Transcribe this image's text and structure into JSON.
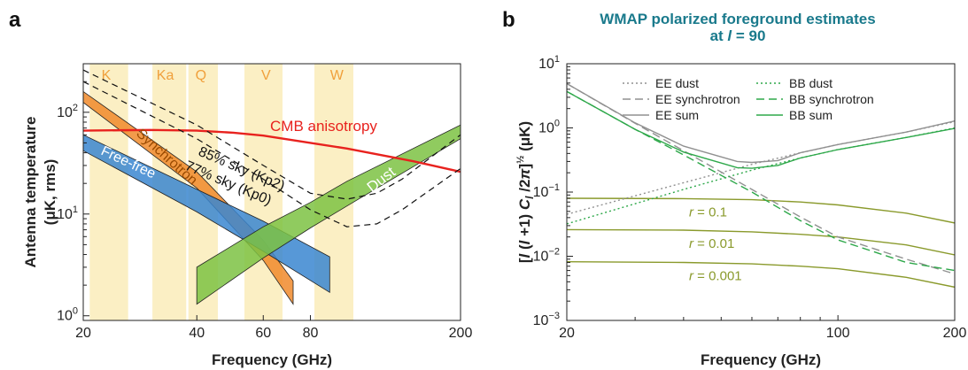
{
  "figure_title": "WMAP polarized foreground estimates",
  "chart_data": [
    {
      "panel_label": "a",
      "type": "line",
      "xlabel": "Frequency (GHz)",
      "ylabel": "Antenna temperature (μK, rms)",
      "xscale": "log",
      "yscale": "log",
      "xlim": [
        20,
        200
      ],
      "ylim": [
        0.9,
        300
      ],
      "x_ticks": [
        "20",
        "40",
        "60",
        "80",
        "200"
      ],
      "x_tick_values": [
        20,
        40,
        60,
        80,
        200
      ],
      "y_ticks": [
        {
          "base": "10",
          "exp": "0",
          "value": 1
        },
        {
          "base": "10",
          "exp": "1",
          "value": 10
        },
        {
          "base": "10",
          "exp": "2",
          "value": 100
        }
      ],
      "bands": [
        {
          "label": "K",
          "range": [
            20.8,
            26.3
          ],
          "center": 23
        },
        {
          "label": "Ka",
          "range": [
            30.5,
            37.5
          ],
          "center": 33
        },
        {
          "label": "Q",
          "range": [
            38,
            45.5
          ],
          "center": 41
        },
        {
          "label": "V",
          "range": [
            53.5,
            67.5
          ],
          "center": 61
        },
        {
          "label": "W",
          "range": [
            82,
            104
          ],
          "center": 94
        }
      ],
      "series": [
        {
          "name": "CMB anisotropy",
          "color": "#e8221e",
          "x": [
            20,
            30,
            40,
            50,
            60,
            80,
            100,
            150,
            200
          ],
          "y": [
            66,
            67,
            66,
            63,
            59,
            50,
            44,
            33,
            26
          ]
        },
        {
          "name": "85% sky (Kp2)",
          "style": "dashed",
          "x": [
            20,
            40,
            60,
            80,
            100,
            120,
            140,
            200
          ],
          "y": [
            260,
            75,
            30,
            16,
            14,
            16,
            22,
            60
          ]
        },
        {
          "name": "77% sky (Kp0)",
          "style": "dashed",
          "x": [
            20,
            40,
            60,
            80,
            100,
            120,
            140,
            200
          ],
          "y": [
            200,
            55,
            22,
            11,
            7.5,
            8,
            11,
            28
          ]
        }
      ],
      "band_regions": [
        {
          "name": "Synchrotron",
          "color": "#f08a2c",
          "x": [
            20,
            40,
            60,
            72
          ],
          "upper": [
            160,
            26,
            5.5,
            2.2
          ],
          "lower": [
            125,
            18,
            3.5,
            1.3
          ]
        },
        {
          "name": "Free-free",
          "color": "#3a86d0",
          "x": [
            20,
            40,
            60,
            90
          ],
          "upper": [
            60,
            17.5,
            8.5,
            3.8
          ],
          "lower": [
            42,
            10.5,
            4.3,
            1.7
          ]
        },
        {
          "name": "Dust",
          "color": "#7cc243",
          "x": [
            40,
            60,
            80,
            100,
            200
          ],
          "upper": [
            3,
            7.5,
            13,
            21,
            75
          ],
          "lower": [
            1.3,
            3.7,
            7.3,
            12,
            55
          ]
        }
      ]
    },
    {
      "panel_label": "b",
      "type": "line",
      "title": "WMAP polarized foreground estimates",
      "subtitle_prefix": "at ",
      "subtitle_var": "l",
      "subtitle_suffix": " = 90",
      "xlabel": "Frequency (GHz)",
      "ylabel": "[l(l+1)C_l/2π]^½ (μK)",
      "xscale": "log",
      "yscale": "log",
      "xlim": [
        20,
        200
      ],
      "ylim": [
        0.001,
        10
      ],
      "x_ticks": [
        "20",
        "100",
        "200"
      ],
      "x_tick_values": [
        20,
        100,
        200
      ],
      "y_ticks": [
        {
          "base": "10",
          "exp": "−3",
          "value": 0.001
        },
        {
          "base": "10",
          "exp": "−2",
          "value": 0.01
        },
        {
          "base": "10",
          "exp": "−1",
          "value": 0.1
        },
        {
          "base": "10",
          "exp": "0",
          "value": 1
        },
        {
          "base": "10",
          "exp": "1",
          "value": 10
        }
      ],
      "legend_placement": "top",
      "series": [
        {
          "name": "EE dust",
          "color": "#909090",
          "style": "dotted",
          "x": [
            20,
            40,
            60,
            80,
            100,
            150,
            200
          ],
          "y": [
            0.045,
            0.14,
            0.27,
            0.41,
            0.55,
            0.86,
            1.25
          ]
        },
        {
          "name": "EE synchrotron",
          "color": "#909090",
          "style": "dashed",
          "x": [
            20,
            30,
            40,
            60,
            80,
            100,
            150,
            200
          ],
          "y": [
            4.9,
            1.18,
            0.44,
            0.11,
            0.041,
            0.02,
            0.009,
            0.0053
          ]
        },
        {
          "name": "EE sum",
          "color": "#909090",
          "style": "solid",
          "x": [
            20,
            30,
            40,
            55,
            60,
            70,
            80,
            100,
            150,
            200
          ],
          "y": [
            4.9,
            1.2,
            0.52,
            0.3,
            0.29,
            0.31,
            0.41,
            0.55,
            0.86,
            1.28
          ]
        },
        {
          "name": "BB dust",
          "color": "#2ea84a",
          "style": "dotted",
          "x": [
            20,
            40,
            60,
            80,
            100,
            150,
            200
          ],
          "y": [
            0.032,
            0.11,
            0.22,
            0.34,
            0.46,
            0.71,
            1.0
          ]
        },
        {
          "name": "BB synchrotron",
          "color": "#2ea84a",
          "style": "dashed",
          "x": [
            20,
            30,
            40,
            60,
            80,
            100,
            150,
            200
          ],
          "y": [
            3.7,
            0.95,
            0.38,
            0.1,
            0.036,
            0.018,
            0.008,
            0.006
          ]
        },
        {
          "name": "BB sum",
          "color": "#2ea84a",
          "style": "solid",
          "x": [
            20,
            30,
            40,
            55,
            60,
            70,
            80,
            100,
            150,
            200
          ],
          "y": [
            3.7,
            0.95,
            0.42,
            0.24,
            0.235,
            0.26,
            0.34,
            0.46,
            0.71,
            0.98
          ]
        }
      ],
      "reference_lines": [
        {
          "label_var": "r",
          "label_value": " = 0.1",
          "color": "#8a9a2c",
          "x": [
            20,
            40,
            60,
            80,
            100,
            150,
            200
          ],
          "y": [
            0.08,
            0.079,
            0.076,
            0.07,
            0.063,
            0.047,
            0.033
          ]
        },
        {
          "label_var": "r",
          "label_value": " = 0.01",
          "color": "#8a9a2c",
          "x": [
            20,
            40,
            60,
            80,
            100,
            150,
            200
          ],
          "y": [
            0.026,
            0.0255,
            0.024,
            0.022,
            0.02,
            0.015,
            0.0105
          ]
        },
        {
          "label_var": "r",
          "label_value": " = 0.001",
          "color": "#8a9a2c",
          "x": [
            20,
            40,
            60,
            80,
            100,
            150,
            200
          ],
          "y": [
            0.0082,
            0.008,
            0.0076,
            0.007,
            0.0064,
            0.0047,
            0.0033
          ]
        }
      ]
    }
  ]
}
